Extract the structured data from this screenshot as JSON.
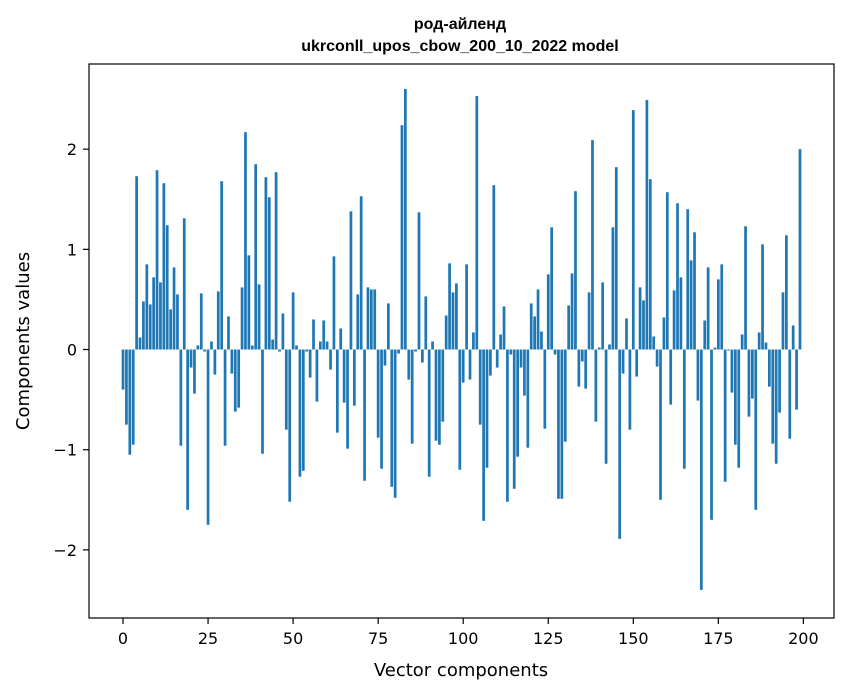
{
  "chart_data": {
    "type": "bar",
    "title_line1": "род-айленд",
    "title_line2": "ukrconll_upos_cbow_200_10_2022 model",
    "xlabel": "Vector components",
    "ylabel": "Components values",
    "xlim": [
      -10,
      209
    ],
    "ylim": [
      -2.68,
      2.85
    ],
    "xticks": [
      0,
      25,
      50,
      75,
      100,
      125,
      150,
      175,
      200
    ],
    "xtick_labels": [
      "0",
      "25",
      "50",
      "75",
      "100",
      "125",
      "150",
      "175",
      "200"
    ],
    "yticks": [
      -2,
      -1,
      0,
      1,
      2
    ],
    "ytick_labels": [
      "−2",
      "−1",
      "0",
      "1",
      "2"
    ],
    "bar_color": "#1f77b4",
    "values": [
      -0.4,
      -0.75,
      -1.05,
      -0.95,
      1.73,
      0.12,
      0.48,
      0.85,
      0.45,
      0.72,
      1.79,
      0.67,
      1.66,
      1.24,
      0.4,
      0.82,
      0.55,
      -0.96,
      1.31,
      -1.6,
      -0.18,
      -0.44,
      0.04,
      0.56,
      -0.02,
      -1.75,
      0.08,
      -0.25,
      0.58,
      1.68,
      -0.96,
      0.33,
      -0.24,
      -0.62,
      -0.58,
      0.62,
      2.17,
      0.94,
      0.04,
      1.85,
      0.65,
      -1.04,
      1.72,
      1.52,
      0.1,
      1.77,
      -0.02,
      0.36,
      -0.8,
      -1.52,
      0.57,
      0.04,
      -1.27,
      -1.21,
      -0.02,
      -0.28,
      0.3,
      -0.52,
      0.08,
      0.29,
      0.08,
      -0.2,
      0.93,
      -0.83,
      0.21,
      -0.53,
      -0.99,
      1.38,
      -0.56,
      0.55,
      1.53,
      -1.31,
      0.62,
      0.6,
      0.6,
      -0.88,
      -1.19,
      -0.16,
      0.46,
      -1.37,
      -1.48,
      -0.04,
      2.24,
      2.6,
      -0.3,
      -0.94,
      -0.02,
      1.37,
      -0.13,
      0.53,
      -1.27,
      0.08,
      -0.91,
      -0.95,
      -0.72,
      0.34,
      0.86,
      0.57,
      0.66,
      -1.2,
      -0.33,
      0.85,
      -0.3,
      0.17,
      2.53,
      -0.75,
      -1.71,
      -1.18,
      -0.26,
      1.64,
      -0.18,
      0.15,
      0.43,
      -1.52,
      -0.05,
      -1.39,
      -1.07,
      -0.18,
      -0.46,
      -0.98,
      0.46,
      0.33,
      0.6,
      0.18,
      -0.79,
      0.75,
      1.22,
      -0.05,
      -1.49,
      -1.49,
      -0.92,
      0.44,
      0.76,
      1.58,
      -0.37,
      -0.12,
      -0.39,
      0.57,
      2.09,
      -0.72,
      0.02,
      0.67,
      -1.14,
      0.05,
      1.22,
      1.82,
      -1.89,
      -0.24,
      0.31,
      -0.8,
      2.39,
      -0.27,
      0.62,
      0.49,
      2.49,
      1.7,
      0.13,
      -0.17,
      -1.5,
      0.32,
      1.57,
      -0.55,
      0.59,
      1.46,
      0.72,
      -1.19,
      1.4,
      0.89,
      1.17,
      -0.51,
      -2.4,
      0.29,
      0.82,
      -1.7,
      0.02,
      0.7,
      0.85,
      -1.32,
      -0.01,
      -0.43,
      -0.95,
      -1.18,
      0.15,
      1.23,
      -0.67,
      -0.49,
      -1.6,
      0.17,
      1.05,
      0.07,
      -0.37,
      -0.94,
      -1.14,
      -0.63,
      0.57,
      1.14,
      -0.89,
      0.24,
      -0.6,
      2.0
    ]
  }
}
